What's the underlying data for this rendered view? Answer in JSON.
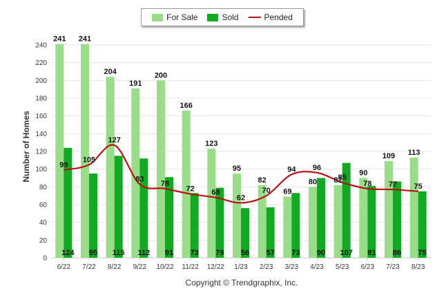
{
  "chart_data": {
    "type": "bar",
    "ylabel": "Number of Homes",
    "ylim": [
      0,
      240
    ],
    "yticks": [
      0,
      20,
      40,
      60,
      80,
      100,
      120,
      140,
      160,
      180,
      200,
      220,
      240
    ],
    "grid": true,
    "legend_placement": "top-center",
    "categories": [
      "6/22",
      "7/22",
      "8/22",
      "9/22",
      "10/22",
      "11/22",
      "12/22",
      "1/23",
      "2/23",
      "3/23",
      "4/23",
      "5/23",
      "6/23",
      "7/23",
      "8/23"
    ],
    "series": [
      {
        "name": "For Sale",
        "kind": "bar",
        "color": "#99dd88",
        "values": [
          241,
          241,
          204,
          191,
          200,
          166,
          123,
          95,
          82,
          69,
          80,
          82,
          90,
          109,
          113
        ]
      },
      {
        "name": "Sold",
        "kind": "bar",
        "color": "#11aa22",
        "values": [
          124,
          95,
          115,
          112,
          91,
          73,
          79,
          56,
          57,
          73,
          90,
          107,
          81,
          86,
          75
        ]
      },
      {
        "name": "Pended",
        "kind": "line",
        "color": "#bb1111",
        "values": [
          99,
          105,
          127,
          83,
          78,
          72,
          68,
          62,
          70,
          94,
          96,
          85,
          78,
          77,
          75
        ]
      }
    ]
  },
  "footer": {
    "copyright": "Copyright © Trendgraphix, Inc."
  }
}
